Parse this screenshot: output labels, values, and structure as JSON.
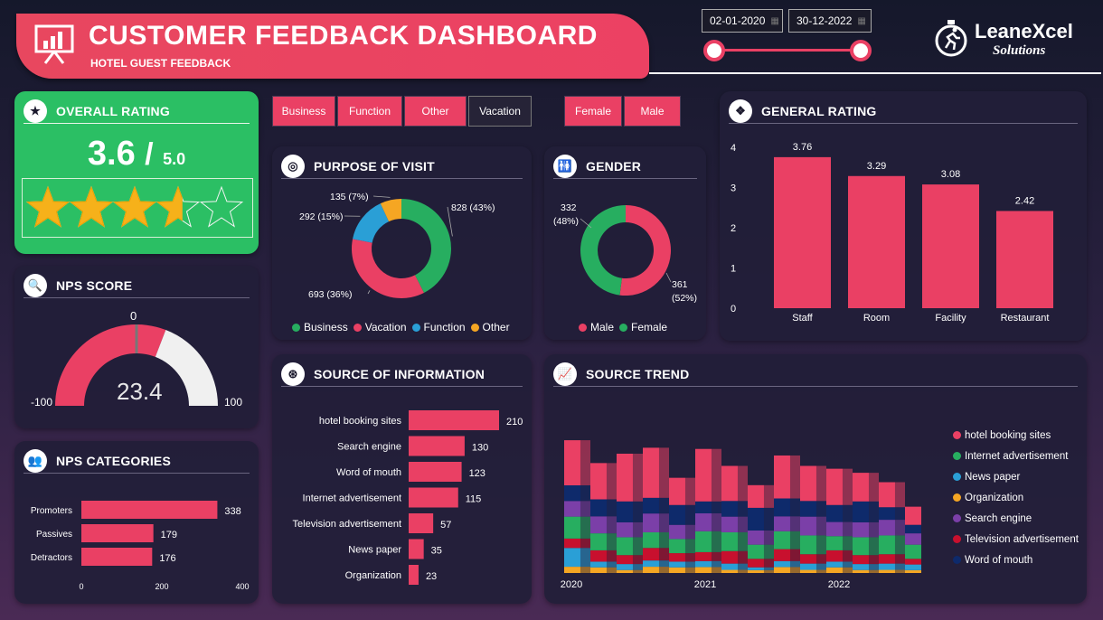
{
  "header": {
    "title": "CUSTOMER FEEDBACK DASHBOARD",
    "subtitle": "HOTEL GUEST FEEDBACK",
    "date_start": "02-01-2020",
    "date_end": "30-12-2022",
    "logo_main": "LeaneXcel",
    "logo_sub": "Solutions",
    "icon": "presentation-chart-icon"
  },
  "overall": {
    "title": "OVERALL RATING",
    "value": "3.6",
    "sep": "/",
    "max": "5.0",
    "rating": 3.6,
    "stars": 5
  },
  "nps": {
    "title": "NPS SCORE",
    "value": "23.4",
    "score": 23.4,
    "min_label": "-100",
    "max_label": "100",
    "zero_label": "0",
    "min": -100,
    "max": 100
  },
  "filters": {
    "purpose": [
      "Business",
      "Function",
      "Other",
      "Vacation"
    ],
    "gender": [
      "Female",
      "Male"
    ]
  },
  "colors": {
    "accent": "#ea4064",
    "green": "#27ae60",
    "blue": "#2a9fd6",
    "orange": "#f5a623",
    "purple": "#7b3fa8",
    "red": "#c8102e",
    "navy": "#0e2a6b",
    "card": "#221e38",
    "rating_bg": "#2bbf64"
  },
  "titles": {
    "purpose": "PURPOSE OF VISIT",
    "gender": "GENDER",
    "general": "GENERAL RATING",
    "nps_cat": "NPS CATEGORIES",
    "source": "SOURCE OF INFORMATION",
    "trend": "SOURCE TREND"
  },
  "chart_data": [
    {
      "type": "pie",
      "title": "PURPOSE OF VISIT",
      "series": [
        {
          "name": "Business",
          "value": 828,
          "label": "828 (43%)"
        },
        {
          "name": "Vacation",
          "value": 693,
          "label": "693 (36%)"
        },
        {
          "name": "Function",
          "value": 292,
          "label": "292 (15%)"
        },
        {
          "name": "Other",
          "value": 135,
          "label": "135 (7%)"
        }
      ]
    },
    {
      "type": "pie",
      "title": "GENDER",
      "series": [
        {
          "name": "Male",
          "value": 361,
          "label_a": "361",
          "label_b": "(52%)"
        },
        {
          "name": "Female",
          "value": 332,
          "label_a": "332",
          "label_b": "(48%)"
        }
      ]
    },
    {
      "type": "bar",
      "title": "GENERAL RATING",
      "categories": [
        "Staff",
        "Room",
        "Facility",
        "Restaurant"
      ],
      "values": [
        3.76,
        3.29,
        3.08,
        2.42
      ],
      "value_labels": [
        "3.76",
        "3.29",
        "3.08",
        "2.42"
      ],
      "yticks": [
        "0",
        "1",
        "2",
        "3",
        "4"
      ],
      "ylim": [
        0,
        4.5
      ]
    },
    {
      "type": "bar",
      "orientation": "horizontal",
      "title": "NPS CATEGORIES",
      "categories": [
        "Promoters",
        "Passives",
        "Detractors"
      ],
      "values": [
        338,
        179,
        176
      ],
      "xticks": [
        "0",
        "200",
        "400"
      ],
      "xlim": [
        0,
        400
      ]
    },
    {
      "type": "bar",
      "orientation": "horizontal",
      "title": "SOURCE OF INFORMATION",
      "categories": [
        "hotel booking sites",
        "Search engine",
        "Word of mouth",
        "Internet advertisement",
        "Television advertisement",
        "News paper",
        "Organization"
      ],
      "values": [
        210,
        130,
        123,
        115,
        57,
        35,
        23
      ],
      "xlim": [
        0,
        210
      ]
    },
    {
      "type": "area",
      "title": "SOURCE TREND",
      "x_labels": [
        "2020",
        "2021",
        "2022"
      ],
      "series": [
        {
          "name": "hotel booking sites"
        },
        {
          "name": "Internet advertisement"
        },
        {
          "name": "News paper"
        },
        {
          "name": "Organization"
        },
        {
          "name": "Search engine"
        },
        {
          "name": "Television advertisement"
        },
        {
          "name": "Word of mouth"
        }
      ]
    }
  ]
}
